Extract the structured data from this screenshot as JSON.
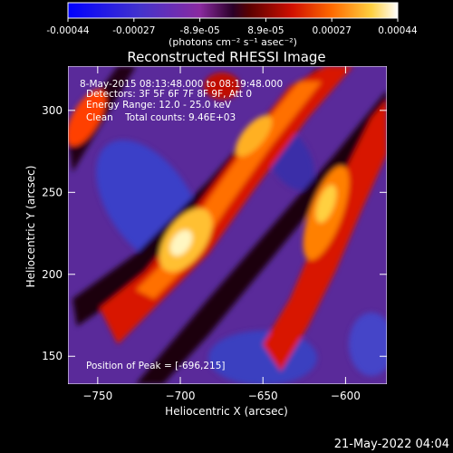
{
  "colorbar": {
    "tick_labels": [
      "-0.00044",
      "-0.00027",
      "-8.9e-05",
      "8.9e-05",
      "0.00027",
      "0.00044"
    ],
    "units_label": "(photons cm⁻² s⁻¹ asec⁻²)"
  },
  "title": "Reconstructed RHESSI Image",
  "info": {
    "time_range": "8-May-2015 08:13:48.000 to 08:19:48.000",
    "detectors": "Detectors: 3F 5F 6F 7F 8F 9F, Att 0",
    "energy_range": "Energy Range: 12.0 - 25.0 keV",
    "method_counts": "Clean    Total counts: 9.46E+03",
    "peak_position": "Position of Peak = [-696,215]"
  },
  "axes": {
    "xlabel": "Heliocentric X (arcsec)",
    "ylabel": "Heliocentric Y (arcsec)",
    "x_ticks": [
      -750,
      -700,
      -650,
      -600
    ],
    "y_ticks": [
      150,
      200,
      250,
      300
    ],
    "xlim": [
      -768,
      -575
    ],
    "ylim": [
      133,
      327
    ]
  },
  "footer_timestamp": "21-May-2022 04:04",
  "colors": {
    "background": "#000000",
    "text": "#ffffff"
  }
}
